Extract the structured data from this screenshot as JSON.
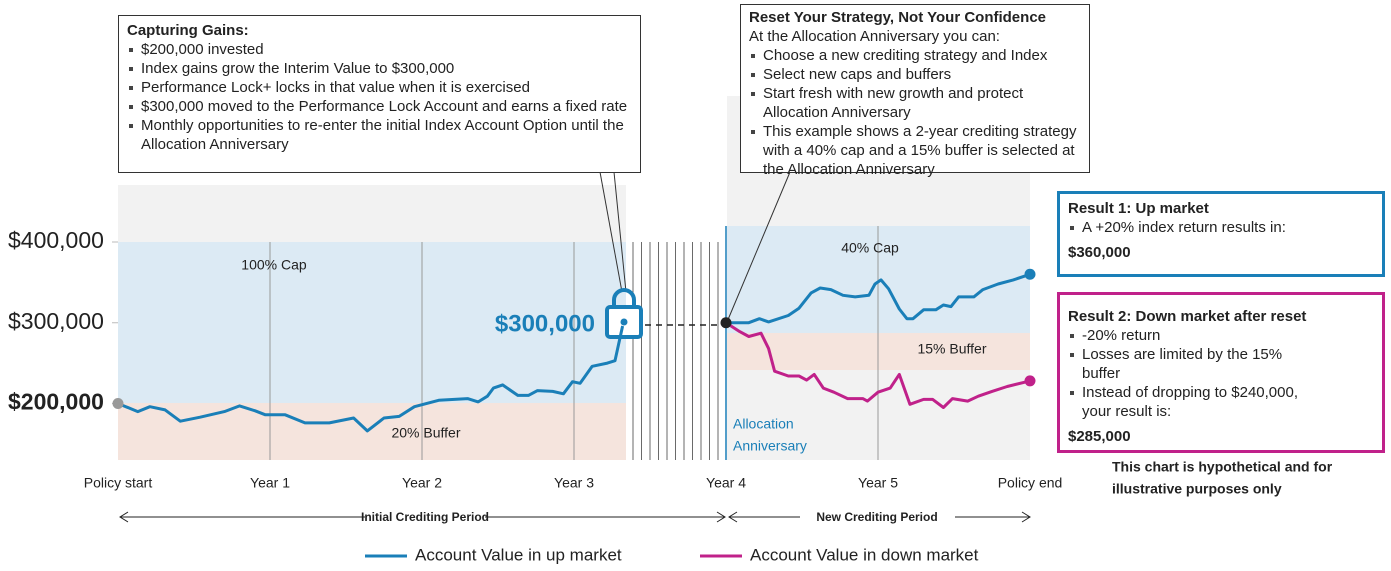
{
  "chart_data": {
    "type": "line",
    "xlim": [
      0,
      6
    ],
    "ylim": [
      130000,
      400000
    ],
    "xticks": [
      {
        "value": 0,
        "label": "Policy start"
      },
      {
        "value": 1,
        "label": "Year 1"
      },
      {
        "value": 2,
        "label": "Year 2"
      },
      {
        "value": 3,
        "label": "Year 3"
      },
      {
        "value": 4,
        "label": "Year 4"
      },
      {
        "value": 5,
        "label": "Year 5"
      },
      {
        "value": 6,
        "label": "Policy end"
      }
    ],
    "yticks": [
      {
        "value": 200000,
        "label": "$200,000",
        "bold": true
      },
      {
        "value": 300000,
        "label": "$300,000"
      },
      {
        "value": 400000,
        "label": "$400,000"
      }
    ],
    "series": [
      {
        "name": "Account Value in up market",
        "color": "#1a7fb8",
        "x": [
          0,
          0.13,
          0.21,
          0.31,
          0.41,
          0.54,
          0.7,
          0.8,
          0.9,
          0.97,
          1.1,
          1.23,
          1.39,
          1.55,
          1.64,
          1.75,
          1.85,
          1.95,
          2.11,
          2.3,
          2.37,
          2.43,
          2.47,
          2.53,
          2.63,
          2.7,
          2.76,
          2.86,
          2.93,
          2.99,
          3.04,
          3.12,
          3.22,
          3.27,
          3.32,
          null,
          4,
          4.15,
          4.22,
          4.28,
          4.41,
          4.48,
          4.56,
          4.62,
          4.69,
          4.77,
          4.85,
          4.94,
          4.98,
          5.02,
          5.07,
          5.14,
          5.19,
          5.23,
          5.3,
          5.38,
          5.43,
          5.48,
          5.53,
          5.63,
          5.69,
          5.79,
          5.89,
          6
        ],
        "values": [
          200000,
          190000,
          196000,
          192000,
          178000,
          183000,
          190000,
          197000,
          191000,
          186000,
          186000,
          176000,
          176000,
          182000,
          166000,
          182000,
          184000,
          196000,
          204000,
          206000,
          202000,
          209000,
          219000,
          223000,
          210000,
          210000,
          216000,
          215000,
          212000,
          227000,
          225000,
          246000,
          250000,
          253000,
          296000,
          null,
          300000,
          300000,
          305000,
          301000,
          309000,
          318000,
          337000,
          343000,
          341000,
          334000,
          332000,
          334000,
          348000,
          353000,
          342000,
          317000,
          305000,
          305000,
          316000,
          316000,
          322000,
          320000,
          332000,
          332000,
          341000,
          348000,
          353000,
          360000
        ]
      },
      {
        "name": "Account Value in down market",
        "color": "#c0218a",
        "x": [
          4,
          4.09,
          4.15,
          4.23,
          4.28,
          4.32,
          4.41,
          4.48,
          4.53,
          4.58,
          4.64,
          4.71,
          4.8,
          4.9,
          4.93,
          5,
          5.08,
          5.14,
          5.21,
          5.3,
          5.36,
          5.43,
          5.49,
          5.59,
          5.66,
          5.75,
          5.85,
          6
        ],
        "values": [
          300000,
          289000,
          283000,
          287000,
          268000,
          240000,
          234000,
          234000,
          229000,
          236000,
          219000,
          214000,
          206000,
          206000,
          203000,
          214000,
          219000,
          236000,
          199000,
          205000,
          205000,
          195000,
          206000,
          203000,
          209000,
          215000,
          221000,
          228000
        ]
      }
    ],
    "annotations": {
      "cap_left": "100% Cap",
      "buffer_left": "20% Buffer",
      "cap_right": "40% Cap",
      "buffer_right": "15% Buffer",
      "lock_value": "$300,000",
      "anniversary": [
        "Allocation",
        "Anniversary"
      ],
      "period_initial": "Initial Crediting Period",
      "period_new": "New Crediting Period",
      "footnote": [
        "This chart is hypothetical and for",
        "illustrative purposes only"
      ]
    },
    "callouts": {
      "gains": {
        "title": "Capturing Gains:",
        "bullets": [
          "$200,000 invested",
          "Index gains grow the Interim Value to $300,000",
          "Performance Lock+ locks in that value when it is exercised",
          "$300,000 moved to the Performance Lock Account and earns a fixed rate",
          "Monthly opportunities to re-enter the initial Index Account Option until the Allocation Anniversary"
        ]
      },
      "reset": {
        "title": "Reset Your Strategy, Not Your Confidence",
        "intro": "At the Allocation Anniversary you can:",
        "bullets": [
          "Choose a new crediting strategy and Index",
          "Select new caps and buffers",
          "Start fresh with new growth and protect Allocation Anniversary",
          "This example shows a 2-year crediting strategy with a 40% cap and a 15% buffer is selected at the Allocation Anniversary"
        ]
      },
      "result1": {
        "title": "Result 1: Up market",
        "bullets": [
          "A +20% index return results in:"
        ],
        "result": "$360,000"
      },
      "result2": {
        "title": "Result 2: Down market after reset",
        "bullets": [
          "-20% return",
          "Losses are limited by the 15% buffer",
          "Instead of dropping to $240,000, your result is:"
        ],
        "result": "$285,000"
      }
    }
  }
}
